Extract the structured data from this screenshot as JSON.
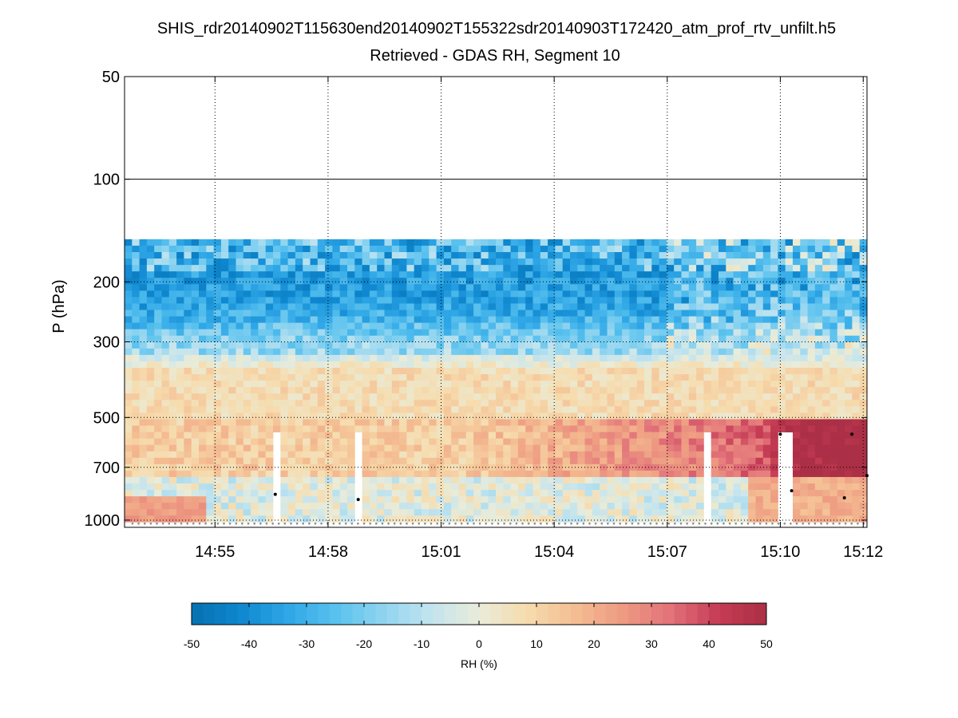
{
  "chart_data": {
    "type": "heatmap",
    "title": "SHIS_rdr20140902T115630end20140902T155322sdr20140903T172420_atm_prof_rtv_unfilt.h5",
    "subtitle": "Retrieved - GDAS RH, Segment 10",
    "ylabel": "P (hPa)",
    "xlabel": "",
    "y_scale": "log",
    "y_reversed": true,
    "ylim": [
      50,
      1050
    ],
    "y_ticks": [
      {
        "value": 50,
        "label": "50"
      },
      {
        "value": 100,
        "label": "100"
      },
      {
        "value": 200,
        "label": "200"
      },
      {
        "value": 300,
        "label": "300"
      },
      {
        "value": 500,
        "label": "500"
      },
      {
        "value": 700,
        "label": "700"
      },
      {
        "value": 1000,
        "label": "1000"
      }
    ],
    "xlim_minutes": [
      52.6,
      72.3
    ],
    "x_ticks": [
      {
        "value": 55,
        "label": "14:55"
      },
      {
        "value": 58,
        "label": "14:58"
      },
      {
        "value": 61,
        "label": "15:01"
      },
      {
        "value": 64,
        "label": "15:04"
      },
      {
        "value": 67,
        "label": "15:07"
      },
      {
        "value": 70,
        "label": "15:10"
      },
      {
        "value": 72.2,
        "label": "15:12"
      }
    ],
    "grid": true,
    "data_top_pressure_hpa": 150,
    "surface_pressure_hpa": 1013,
    "profile_count": 100,
    "missing_profiles_minutes": [
      56.6,
      58.8,
      68.0,
      70.0,
      70.3
    ],
    "surface_markers_minutes": [
      56.6,
      58.8,
      70.0,
      70.3,
      71.7,
      71.9,
      72.3
    ],
    "colorbar": {
      "label": "RH (%)",
      "range": [
        -50,
        50
      ],
      "ticks": [
        {
          "value": -50,
          "label": "-50"
        },
        {
          "value": -40,
          "label": "-40"
        },
        {
          "value": -30,
          "label": "-30"
        },
        {
          "value": -20,
          "label": "-20"
        },
        {
          "value": -10,
          "label": "-10"
        },
        {
          "value": 0,
          "label": "0"
        },
        {
          "value": 10,
          "label": "10"
        },
        {
          "value": 20,
          "label": "20"
        },
        {
          "value": 30,
          "label": "30"
        },
        {
          "value": 40,
          "label": "40"
        },
        {
          "value": 50,
          "label": "50"
        }
      ],
      "colors": [
        "#0571b0",
        "#0f87cf",
        "#2ea6e6",
        "#58c1ee",
        "#8fd4f0",
        "#c3e4ef",
        "#e9ecd9",
        "#f6dcae",
        "#f4bd92",
        "#ee9b82",
        "#e2727a",
        "#c63c54",
        "#ab2f46"
      ]
    }
  }
}
